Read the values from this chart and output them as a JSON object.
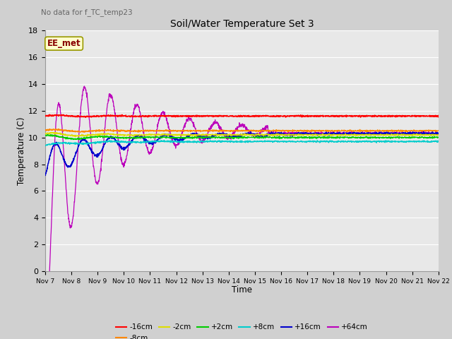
{
  "title": "Soil/Water Temperature Set 3",
  "no_data_label": "No data for f_TC_temp23",
  "xlabel": "Time",
  "ylabel": "Temperature (C)",
  "ylim": [
    0,
    18
  ],
  "yticks": [
    0,
    2,
    4,
    6,
    8,
    10,
    12,
    14,
    16,
    18
  ],
  "x_tick_labels": [
    "Nov 7",
    "Nov 8",
    "Nov 9",
    "Nov 10",
    "Nov 11",
    "Nov 12",
    "Nov 13",
    "Nov 14",
    "Nov 15",
    "Nov 16",
    "Nov 17",
    "Nov 18",
    "Nov 19",
    "Nov 20",
    "Nov 21",
    "Nov 22"
  ],
  "fig_bg": "#d0d0d0",
  "axes_bg": "#e8e8e8",
  "grid_color": "#ffffff",
  "legend_label": "EE_met",
  "legend_bg": "#ffffcc",
  "legend_border": "#999900",
  "colors": {
    "red": "#ff0000",
    "orange": "#ff8800",
    "yellow": "#dddd00",
    "green": "#00cc00",
    "cyan": "#00cccc",
    "blue": "#0000cc",
    "purple": "#bb00bb"
  }
}
